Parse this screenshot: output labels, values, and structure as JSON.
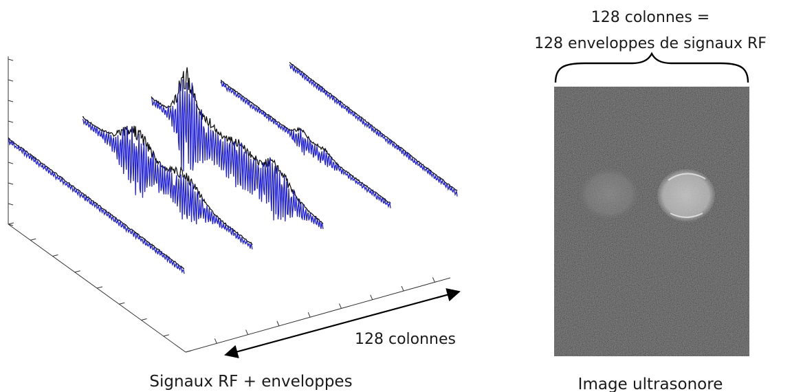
{
  "left_panel": {
    "caption": "Signaux RF + enveloppes",
    "arrow_label": "128 colonnes"
  },
  "right_panel": {
    "brace_label_line1": "128 colonnes =",
    "brace_label_line2": "128 enveloppes de signaux RF",
    "caption": "Image ultrasonore"
  },
  "colors": {
    "rf_signal": "#1f1fd6",
    "envelope": "#111111",
    "axis": "#333333",
    "image_background": "#2a2a2a"
  }
}
